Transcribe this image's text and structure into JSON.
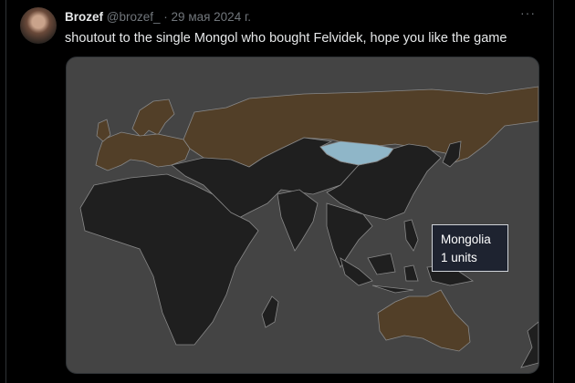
{
  "tweet": {
    "author_name": "Brozef",
    "handle": "@brozef_",
    "separator": "·",
    "date": "29 мая 2024 г.",
    "more_icon": "more-horizontal-icon",
    "text": "shoutout to the single Mongol who bought Felvidek, hope you like the game"
  },
  "map": {
    "colors": {
      "background": "#444444",
      "highlighted": "#523f28",
      "default": "#1f1f1f",
      "hovered": "#8fb6c8"
    },
    "tooltip": {
      "country": "Mongolia",
      "value": "1 units"
    }
  }
}
